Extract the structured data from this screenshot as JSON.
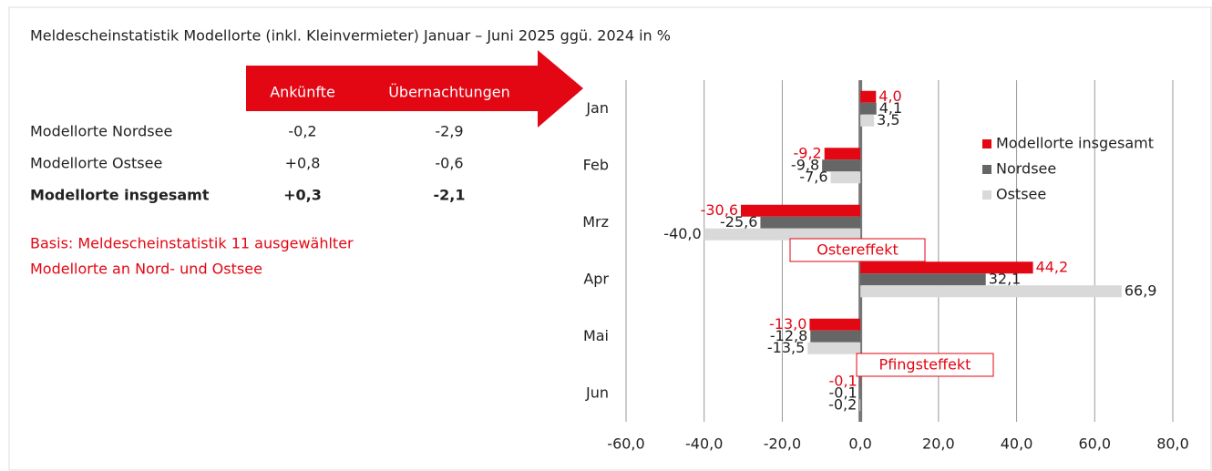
{
  "chart_data": {
    "type": "hbar",
    "title": "Meldescheinstatistik Modellorte (inkl. Kleinvermieter) Januar – Juni 2025 ggü. 2024 in %",
    "categories": [
      "Jan",
      "Feb",
      "Mrz",
      "Apr",
      "Mai",
      "Jun"
    ],
    "series": [
      {
        "name": "Modellorte insgesamt",
        "color": "#e30613",
        "values": [
          4.0,
          -9.2,
          -30.6,
          44.2,
          -13.0,
          -0.1
        ],
        "value_labels": [
          "4,0",
          "-9,2",
          "-30,6",
          "44,2",
          "-13,0",
          "-0,1"
        ]
      },
      {
        "name": "Nordsee",
        "color": "#666666",
        "values": [
          4.1,
          -9.8,
          -25.6,
          32.1,
          -12.8,
          -0.1
        ],
        "value_labels": [
          "4,1",
          "-9,8",
          "-25,6",
          "32,1",
          "-12,8",
          "-0,1"
        ]
      },
      {
        "name": "Ostsee",
        "color": "#d9d9d9",
        "values": [
          3.5,
          -7.6,
          -40.0,
          66.9,
          -13.5,
          -0.2
        ],
        "value_labels": [
          "3,5",
          "-7,6",
          "-40,0",
          "66,9",
          "-13,5",
          "-0,2"
        ]
      }
    ],
    "xlim": [
      -60,
      80
    ],
    "xticks": [
      {
        "value": -60,
        "label": "-60,0"
      },
      {
        "value": -40,
        "label": "-40,0"
      },
      {
        "value": -20,
        "label": "-20,0"
      },
      {
        "value": 0,
        "label": "0,0"
      },
      {
        "value": 20,
        "label": "20,0"
      },
      {
        "value": 40,
        "label": "40,0"
      },
      {
        "value": 60,
        "label": "60,0"
      },
      {
        "value": 80,
        "label": "80,0"
      }
    ],
    "grid": true,
    "legend": "upper right",
    "annotations": [
      "Ostereffekt",
      "Pfingsteffekt"
    ]
  },
  "table": {
    "header": [
      "Ankünfte",
      "Übernachtungen"
    ],
    "rows": [
      [
        "Modellorte Nordsee",
        "-0,2",
        "-2,9"
      ],
      [
        "Modellorte Ostsee",
        "+0,8",
        "-0,6"
      ],
      [
        "Modellorte insgesamt",
        "+0,3",
        "-2,1"
      ]
    ]
  },
  "note": [
    "Basis: Meldescheinstatistik 11 ausgewählter",
    "Modellorte an Nord- und Ostsee"
  ]
}
